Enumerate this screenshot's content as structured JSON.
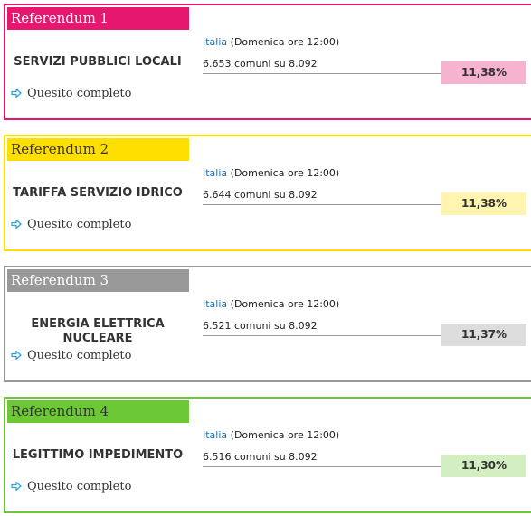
{
  "referenda": [
    {
      "label": "Referendum 1",
      "title": "SERVIZI PUBBLICI LOCALI",
      "region": "Italia",
      "time": "(Domenica ore 12:00)",
      "comuni": "6.653 comuni su 8.092",
      "percent": "11,38%",
      "link": "Quesito completo",
      "color": "#e5176f",
      "box_color": "#f5b3cf",
      "header_text_color": "#ffffff"
    },
    {
      "label": "Referendum 2",
      "title": "TARIFFA SERVIZIO IDRICO",
      "region": "Italia",
      "time": "(Domenica ore 12:00)",
      "comuni": "6.644 comuni su 8.092",
      "percent": "11,38%",
      "link": "Quesito completo",
      "color": "#ffdf00",
      "box_color": "#fff4b0",
      "header_text_color": "#333333"
    },
    {
      "label": "Referendum 3",
      "title": "ENERGIA ELETTRICA NUCLEARE",
      "region": "Italia",
      "time": "(Domenica ore 12:00)",
      "comuni": "6.521 comuni su 8.092",
      "percent": "11,37%",
      "link": "Quesito completo",
      "color": "#999999",
      "box_color": "#dddddd",
      "header_text_color": "#ffffff"
    },
    {
      "label": "Referendum 4",
      "title": "LEGITTIMO IMPEDIMENTO",
      "region": "Italia",
      "time": "(Domenica ore 12:00)",
      "comuni": "6.516 comuni su 8.092",
      "percent": "11,30%",
      "link": "Quesito completo",
      "color": "#6cc834",
      "box_color": "#d3efc2",
      "header_text_color": "#333333"
    }
  ]
}
